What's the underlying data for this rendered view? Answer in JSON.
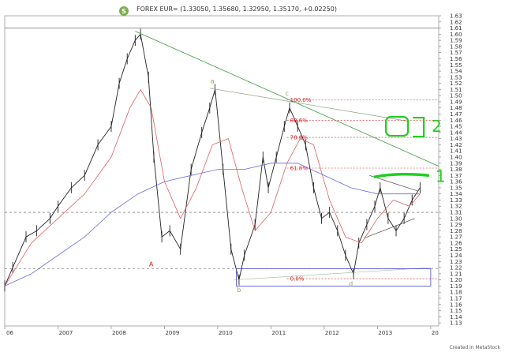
{
  "header": {
    "badge": "S",
    "title": "FOREX EUR= (1.33050, 1.35680, 1.32950, 1.35170, +0.02250)"
  },
  "credit": "Created in MetaStock",
  "colors": {
    "price": "#222222",
    "ma_fast": "#e06060",
    "ma_slow": "#6a6ae0",
    "trendline": "#3a9a3a",
    "fib": "#d42020",
    "box": "#4444cc",
    "hand_marks": "#1fcf1f",
    "badge": "#7ab04a"
  },
  "chart_data": {
    "type": "line",
    "title": "",
    "xlabel": "",
    "ylabel": "",
    "xlim": [
      2006.0,
      2014.15
    ],
    "ylim": [
      1.125,
      1.63
    ],
    "x_ticks": [
      "06",
      "2007",
      "2008",
      "2009",
      "2010",
      "2011",
      "2012",
      "2013",
      "20"
    ],
    "y_ticks": [
      "1.63",
      "1.62",
      "1.61",
      "1.60",
      "1.59",
      "1.58",
      "1.57",
      "1.56",
      "1.55",
      "1.54",
      "1.53",
      "1.52",
      "1.51",
      "1.50",
      "1.49",
      "1.48",
      "1.47",
      "1.46",
      "1.45",
      "1.44",
      "1.43",
      "1.42",
      "1.41",
      "1.40",
      "1.39",
      "1.38",
      "1.37",
      "1.36",
      "1.35",
      "1.34",
      "1.33",
      "1.32",
      "1.31",
      "1.30",
      "1.29",
      "1.28",
      "1.27",
      "1.26",
      "1.25",
      "1.24",
      "1.23",
      "1.22",
      "1.21",
      "1.20",
      "1.19",
      "1.18",
      "1.17",
      "1.16",
      "1.15",
      "1.14",
      "1.13"
    ],
    "series": [
      {
        "kind": "price",
        "x": [
          2006.0,
          2006.15,
          2006.4,
          2006.6,
          2006.85,
          2007.0,
          2007.25,
          2007.5,
          2007.75,
          2008.0,
          2008.15,
          2008.3,
          2008.45,
          2008.55,
          2008.7,
          2008.8,
          2008.95,
          2009.1,
          2009.3,
          2009.5,
          2009.7,
          2009.85,
          2009.95,
          2010.1,
          2010.25,
          2010.4,
          2010.5,
          2010.7,
          2010.85,
          2010.95,
          2011.1,
          2011.25,
          2011.35,
          2011.5,
          2011.65,
          2011.8,
          2011.95,
          2012.1,
          2012.25,
          2012.4,
          2012.55,
          2012.65,
          2012.8,
          2012.95,
          2013.05,
          2013.2,
          2013.35,
          2013.5,
          2013.65,
          2013.8
        ],
        "y": [
          1.19,
          1.22,
          1.27,
          1.28,
          1.3,
          1.32,
          1.35,
          1.37,
          1.42,
          1.45,
          1.52,
          1.56,
          1.59,
          1.6,
          1.53,
          1.4,
          1.27,
          1.28,
          1.25,
          1.38,
          1.44,
          1.48,
          1.51,
          1.38,
          1.25,
          1.2,
          1.24,
          1.29,
          1.4,
          1.35,
          1.4,
          1.45,
          1.48,
          1.45,
          1.42,
          1.35,
          1.3,
          1.31,
          1.28,
          1.24,
          1.21,
          1.26,
          1.29,
          1.32,
          1.35,
          1.3,
          1.28,
          1.3,
          1.33,
          1.35
        ]
      },
      {
        "kind": "ma_fast",
        "x": [
          2006.0,
          2006.5,
          2007.0,
          2007.5,
          2008.0,
          2008.35,
          2008.55,
          2008.75,
          2009.0,
          2009.3,
          2009.6,
          2009.9,
          2010.2,
          2010.45,
          2010.7,
          2011.0,
          2011.3,
          2011.55,
          2011.8,
          2012.1,
          2012.4,
          2012.7,
          2013.0,
          2013.3,
          2013.6,
          2013.8
        ],
        "y": [
          1.19,
          1.26,
          1.3,
          1.34,
          1.4,
          1.48,
          1.51,
          1.48,
          1.36,
          1.3,
          1.35,
          1.42,
          1.43,
          1.35,
          1.28,
          1.31,
          1.39,
          1.43,
          1.42,
          1.33,
          1.27,
          1.26,
          1.3,
          1.33,
          1.32,
          1.34
        ]
      },
      {
        "kind": "ma_slow",
        "x": [
          2006.0,
          2006.5,
          2007.0,
          2007.5,
          2008.0,
          2008.5,
          2009.0,
          2009.5,
          2010.0,
          2010.5,
          2011.0,
          2011.5,
          2012.0,
          2012.5,
          2013.0,
          2013.5,
          2013.8
        ],
        "y": [
          1.19,
          1.21,
          1.24,
          1.27,
          1.31,
          1.34,
          1.36,
          1.37,
          1.38,
          1.38,
          1.39,
          1.39,
          1.37,
          1.35,
          1.34,
          1.34,
          1.34
        ]
      }
    ],
    "trendlines": [
      {
        "name": "downtrend",
        "x": [
          2008.45,
          2014.15
        ],
        "y": [
          1.605,
          1.385
        ]
      },
      {
        "name": "wave-top",
        "x": [
          2009.85,
          2013.6
        ],
        "y": [
          1.512,
          1.458
        ]
      },
      {
        "name": "lower-channel",
        "x": [
          2012.75,
          2013.7
        ],
        "y": [
          1.268,
          1.3
        ]
      },
      {
        "name": "upper-channel",
        "x": [
          2012.85,
          2013.75
        ],
        "y": [
          1.37,
          1.345
        ]
      },
      {
        "name": "bottom-rising",
        "x": [
          2010.3,
          2014.0
        ],
        "y": [
          1.2,
          1.22
        ]
      }
    ],
    "horizontal_lines": [
      {
        "y": 1.61,
        "style": "solid"
      },
      {
        "y": 1.31,
        "style": "dashed"
      },
      {
        "y": 1.218,
        "style": "dashed"
      }
    ],
    "fibonacci": {
      "x_start": 2011.3,
      "levels": [
        {
          "label": "100.0%",
          "y": 1.493
        },
        {
          "label": "88.6%",
          "y": 1.46
        },
        {
          "label": "78.6%",
          "y": 1.432
        },
        {
          "label": "61.8%",
          "y": 1.382
        },
        {
          "label": "0.0%",
          "y": 1.202
        }
      ]
    },
    "box": {
      "x": [
        2010.35,
        2014.0
      ],
      "y": [
        1.19,
        1.218
      ]
    },
    "wave_labels": [
      {
        "label": "S",
        "x": 2008.3,
        "y": 1.625,
        "kind": "badge"
      },
      {
        "label": "a",
        "x": 2009.9,
        "y": 1.52,
        "kind": "minor"
      },
      {
        "label": "c",
        "x": 2011.3,
        "y": 1.5,
        "kind": "minor"
      },
      {
        "label": "A",
        "x": 2008.75,
        "y": 1.222,
        "kind": "major"
      },
      {
        "label": "b",
        "x": 2010.4,
        "y": 1.18,
        "kind": "minor"
      },
      {
        "label": "d",
        "x": 2012.5,
        "y": 1.19,
        "kind": "minor"
      }
    ],
    "annotations": [
      {
        "label": "2",
        "x": 2013.9,
        "y": 1.45,
        "kind": "handwritten"
      },
      {
        "label": "1",
        "x": 2014.12,
        "y": 1.37,
        "kind": "handwritten"
      }
    ]
  }
}
